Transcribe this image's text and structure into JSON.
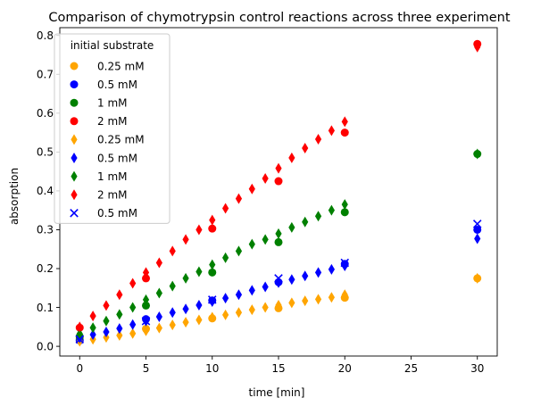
{
  "chart_data": {
    "type": "scatter",
    "title": "Comparison of chymotrypsin control reactions across three experiment",
    "xlabel": "time [min]",
    "ylabel": "absorption",
    "xlim": [
      -1.5,
      31.5
    ],
    "ylim": [
      -0.025,
      0.82
    ],
    "xticks": [
      0,
      5,
      10,
      15,
      20,
      25,
      30
    ],
    "yticks": [
      0.0,
      0.1,
      0.2,
      0.3,
      0.4,
      0.5,
      0.6,
      0.7,
      0.8
    ],
    "grid": false,
    "legend": {
      "title": "initial substrate",
      "placement": "top-left"
    },
    "colors": {
      "0.25 mM": "#ffa500",
      "0.5 mM": "#0000ff",
      "1 mM": "#008000",
      "2 mM": "#ff0000"
    },
    "series": [
      {
        "name": "0.25 mM",
        "marker": "circle",
        "color": "#ffa500",
        "x": [
          0,
          5,
          10,
          15,
          20,
          30
        ],
        "y": [
          0.02,
          0.045,
          0.072,
          0.098,
          0.125,
          0.175
        ]
      },
      {
        "name": "0.5 mM",
        "marker": "circle",
        "color": "#0000ff",
        "x": [
          0,
          5,
          10,
          15,
          20,
          30
        ],
        "y": [
          0.015,
          0.07,
          0.118,
          0.165,
          0.212,
          0.3
        ]
      },
      {
        "name": "1 mM",
        "marker": "circle",
        "color": "#008000",
        "x": [
          0,
          5,
          10,
          15,
          20,
          30
        ],
        "y": [
          0.025,
          0.105,
          0.19,
          0.268,
          0.345,
          0.495
        ]
      },
      {
        "name": "2 mM",
        "marker": "circle",
        "color": "#ff0000",
        "x": [
          0,
          5,
          10,
          15,
          20,
          30
        ],
        "y": [
          0.048,
          0.175,
          0.303,
          0.425,
          0.55,
          0.778
        ]
      },
      {
        "name": "0.25 mM",
        "marker": "thin_diamond",
        "color": "#ffa500",
        "x": [
          0,
          1,
          2,
          3,
          4,
          5,
          6,
          7,
          8,
          9,
          10,
          11,
          12,
          13,
          14,
          15,
          16,
          17,
          18,
          19,
          20,
          30
        ],
        "y": [
          0.013,
          0.018,
          0.023,
          0.028,
          0.033,
          0.04,
          0.047,
          0.055,
          0.062,
          0.068,
          0.075,
          0.081,
          0.087,
          0.094,
          0.1,
          0.106,
          0.112,
          0.117,
          0.121,
          0.126,
          0.133,
          0.175
        ]
      },
      {
        "name": "0.5 mM",
        "marker": "thin_diamond",
        "color": "#0000ff",
        "x": [
          0,
          1,
          2,
          3,
          4,
          5,
          6,
          7,
          8,
          9,
          10,
          11,
          12,
          13,
          14,
          15,
          16,
          17,
          18,
          19,
          20,
          30
        ],
        "y": [
          0.022,
          0.03,
          0.037,
          0.046,
          0.056,
          0.065,
          0.076,
          0.087,
          0.096,
          0.106,
          0.115,
          0.124,
          0.133,
          0.144,
          0.153,
          0.164,
          0.172,
          0.181,
          0.19,
          0.198,
          0.207,
          0.277
        ]
      },
      {
        "name": "1 mM",
        "marker": "thin_diamond",
        "color": "#008000",
        "x": [
          0,
          1,
          2,
          3,
          4,
          5,
          6,
          7,
          8,
          9,
          10,
          11,
          12,
          13,
          14,
          15,
          16,
          17,
          18,
          19,
          20,
          30
        ],
        "y": [
          0.032,
          0.048,
          0.065,
          0.082,
          0.1,
          0.12,
          0.137,
          0.155,
          0.175,
          0.192,
          0.21,
          0.228,
          0.245,
          0.263,
          0.275,
          0.29,
          0.306,
          0.32,
          0.335,
          0.35,
          0.365,
          0.495
        ]
      },
      {
        "name": "2 mM",
        "marker": "thin_diamond",
        "color": "#ff0000",
        "x": [
          0,
          1,
          2,
          3,
          4,
          5,
          6,
          7,
          8,
          9,
          10,
          11,
          12,
          13,
          14,
          15,
          16,
          17,
          18,
          19,
          20,
          30
        ],
        "y": [
          0.05,
          0.078,
          0.105,
          0.133,
          0.162,
          0.19,
          0.215,
          0.245,
          0.275,
          0.3,
          0.325,
          0.355,
          0.38,
          0.405,
          0.432,
          0.458,
          0.485,
          0.51,
          0.533,
          0.555,
          0.578,
          0.77
        ]
      },
      {
        "name": "0.5 mM",
        "marker": "x",
        "color": "#0000ff",
        "x": [
          0,
          5,
          10,
          15,
          20,
          30
        ],
        "y": [
          0.018,
          0.065,
          0.12,
          0.175,
          0.215,
          0.315
        ]
      }
    ]
  }
}
